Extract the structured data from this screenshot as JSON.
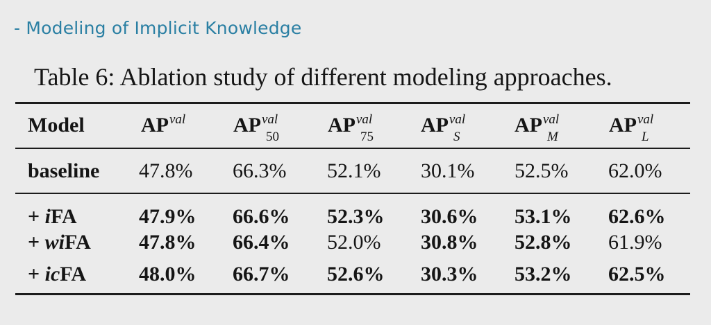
{
  "slide": {
    "heading": "- Modeling of Implicit Knowledge"
  },
  "table": {
    "caption": "Table 6: Ablation study of different modeling approaches.",
    "header": {
      "model": "Model",
      "columns": [
        {
          "base": "AP",
          "sup": "val",
          "sub": ""
        },
        {
          "base": "AP",
          "sup": "val",
          "sub": "50"
        },
        {
          "base": "AP",
          "sup": "val",
          "sub": "75"
        },
        {
          "base": "AP",
          "sup": "val",
          "sub": "S"
        },
        {
          "base": "AP",
          "sup": "val",
          "sub": "M"
        },
        {
          "base": "AP",
          "sup": "val",
          "sub": "L"
        }
      ]
    },
    "rows": [
      {
        "prefix": "baseline",
        "name": "",
        "suffix": "",
        "values": [
          "47.8%",
          "66.3%",
          "52.1%",
          "30.1%",
          "52.5%",
          "62.0%"
        ],
        "bold": [
          false,
          false,
          false,
          false,
          false,
          false
        ]
      },
      {
        "prefix": "+ ",
        "name": "i",
        "suffix": "FA",
        "values": [
          "47.9%",
          "66.6%",
          "52.3%",
          "30.6%",
          "53.1%",
          "62.6%"
        ],
        "bold": [
          true,
          true,
          true,
          true,
          true,
          true
        ]
      },
      {
        "prefix": "+ ",
        "name": "wi",
        "suffix": "FA",
        "values": [
          "47.8%",
          "66.4%",
          "52.0%",
          "30.8%",
          "52.8%",
          "61.9%"
        ],
        "bold": [
          true,
          true,
          false,
          true,
          true,
          false
        ]
      },
      {
        "prefix": "+ ",
        "name": "ic",
        "suffix": "FA",
        "values": [
          "48.0%",
          "66.7%",
          "52.6%",
          "30.3%",
          "53.2%",
          "62.5%"
        ],
        "bold": [
          true,
          true,
          true,
          true,
          true,
          true
        ]
      }
    ]
  }
}
